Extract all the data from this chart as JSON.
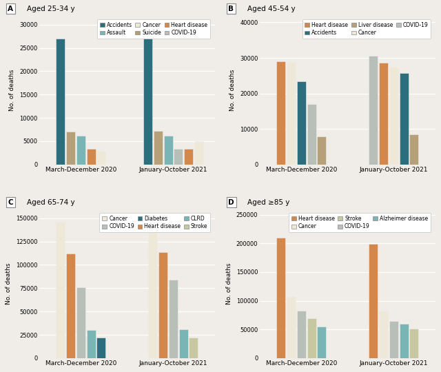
{
  "panels": [
    {
      "label": "A",
      "title": "Aged 25-34 y",
      "ylim": [
        0,
        32000
      ],
      "yticks": [
        0,
        5000,
        10000,
        15000,
        20000,
        25000,
        30000
      ],
      "ytick_labels": [
        "0",
        "5000",
        "10000",
        "15000",
        "20000",
        "25000",
        "30000"
      ],
      "groups": [
        "March-December 2020",
        "January-October 2021"
      ],
      "causes": [
        "Accidents",
        "Suicide",
        "Assault",
        "Heart disease",
        "Cancer",
        "COVID-19"
      ],
      "bar_order_2020": [
        "Accidents",
        "Suicide",
        "Assault",
        "Heart disease",
        "Cancer"
      ],
      "bar_values_2020": [
        27000,
        7000,
        6200,
        3300,
        2900
      ],
      "bar_order_2021": [
        "Accidents",
        "Suicide",
        "Assault",
        "COVID-19",
        "Heart disease",
        "Cancer"
      ],
      "bar_values_2021": [
        28500,
        7200,
        6200,
        3300,
        3300,
        5000
      ],
      "legend_order": [
        "Accidents",
        "Assault",
        "Cancer",
        "Suicide",
        "Heart disease",
        "COVID-19"
      ],
      "legend_ncol": 3
    },
    {
      "label": "B",
      "title": "Aged 45-54 y",
      "ylim": [
        0,
        42000
      ],
      "yticks": [
        0,
        10000,
        20000,
        30000,
        40000
      ],
      "ytick_labels": [
        "0",
        "10000",
        "20000",
        "30000",
        "40000"
      ],
      "groups": [
        "March-December 2020",
        "January-October 2021"
      ],
      "causes": [
        "Heart disease",
        "Cancer",
        "Accidents",
        "COVID-19",
        "Liver disease"
      ],
      "bar_order_2020": [
        "Heart disease",
        "Cancer",
        "Accidents",
        "COVID-19",
        "Liver disease"
      ],
      "bar_values_2020": [
        29000,
        28800,
        23500,
        17000,
        8000
      ],
      "bar_order_2021": [
        "COVID-19",
        "Heart disease",
        "Cancer",
        "Accidents",
        "Liver disease"
      ],
      "bar_values_2021": [
        30500,
        28600,
        27500,
        25800,
        8500
      ],
      "legend_order": [
        "Heart disease",
        "Accidents",
        "Liver disease",
        "Cancer",
        "COVID-19"
      ],
      "legend_ncol": 3
    },
    {
      "label": "C",
      "title": "Aged 65-74 y",
      "ylim": [
        0,
        160000
      ],
      "yticks": [
        0,
        25000,
        50000,
        75000,
        100000,
        125000,
        150000
      ],
      "ytick_labels": [
        "0",
        "25000",
        "50000",
        "75000",
        "100000",
        "125000",
        "150000"
      ],
      "groups": [
        "March-December 2020",
        "January-October 2021"
      ],
      "causes": [
        "Cancer",
        "Heart disease",
        "COVID-19",
        "CLRD",
        "Diabetes",
        "Stroke"
      ],
      "bar_order_2020": [
        "Cancer",
        "Heart disease",
        "COVID-19",
        "CLRD",
        "Diabetes"
      ],
      "bar_values_2020": [
        146000,
        112000,
        76000,
        30000,
        22000
      ],
      "bar_order_2021": [
        "Cancer",
        "Heart disease",
        "COVID-19",
        "CLRD",
        "Stroke"
      ],
      "bar_values_2021": [
        148000,
        114000,
        84000,
        31000,
        22000
      ],
      "legend_order": [
        "Cancer",
        "COVID-19",
        "Diabetes",
        "Heart disease",
        "CLRD",
        "Stroke"
      ],
      "legend_ncol": 3
    },
    {
      "label": "D",
      "title": "Aged ≥85 y",
      "ylim": [
        0,
        260000
      ],
      "yticks": [
        0,
        50000,
        100000,
        150000,
        200000,
        250000
      ],
      "ytick_labels": [
        "0",
        "50000",
        "100000",
        "150000",
        "200000",
        "250000"
      ],
      "groups": [
        "March-December 2020",
        "January-October 2021"
      ],
      "causes": [
        "Heart disease",
        "Cancer",
        "COVID-19",
        "Stroke",
        "Alzheimer disease"
      ],
      "bar_order_2020": [
        "Heart disease",
        "Cancer",
        "COVID-19",
        "Stroke",
        "Alzheimer disease"
      ],
      "bar_values_2020": [
        210000,
        108000,
        83000,
        70000,
        55000
      ],
      "bar_order_2021": [
        "Heart disease",
        "Cancer",
        "COVID-19",
        "Alzheimer disease",
        "Stroke"
      ],
      "bar_values_2021": [
        199000,
        83000,
        65000,
        60000,
        52000
      ],
      "legend_order": [
        "Heart disease",
        "Cancer",
        "Stroke",
        "COVID-19",
        "Alzheimer disease"
      ],
      "legend_ncol": 3
    }
  ],
  "bg_color": "#f0ede8",
  "cause_colors": {
    "Accidents": "#2d6e7e",
    "Suicide": "#b5a07a",
    "Assault": "#7ab5b5",
    "Heart disease": "#d4874a",
    "Cancer": "#ede8d8",
    "COVID-19": "#b8beb8",
    "Liver disease": "#b5a07a",
    "CLRD": "#7ab5b5",
    "Diabetes": "#2d6e7e",
    "Stroke": "#c8c8a0",
    "Alzheimer disease": "#7ab5b5"
  }
}
